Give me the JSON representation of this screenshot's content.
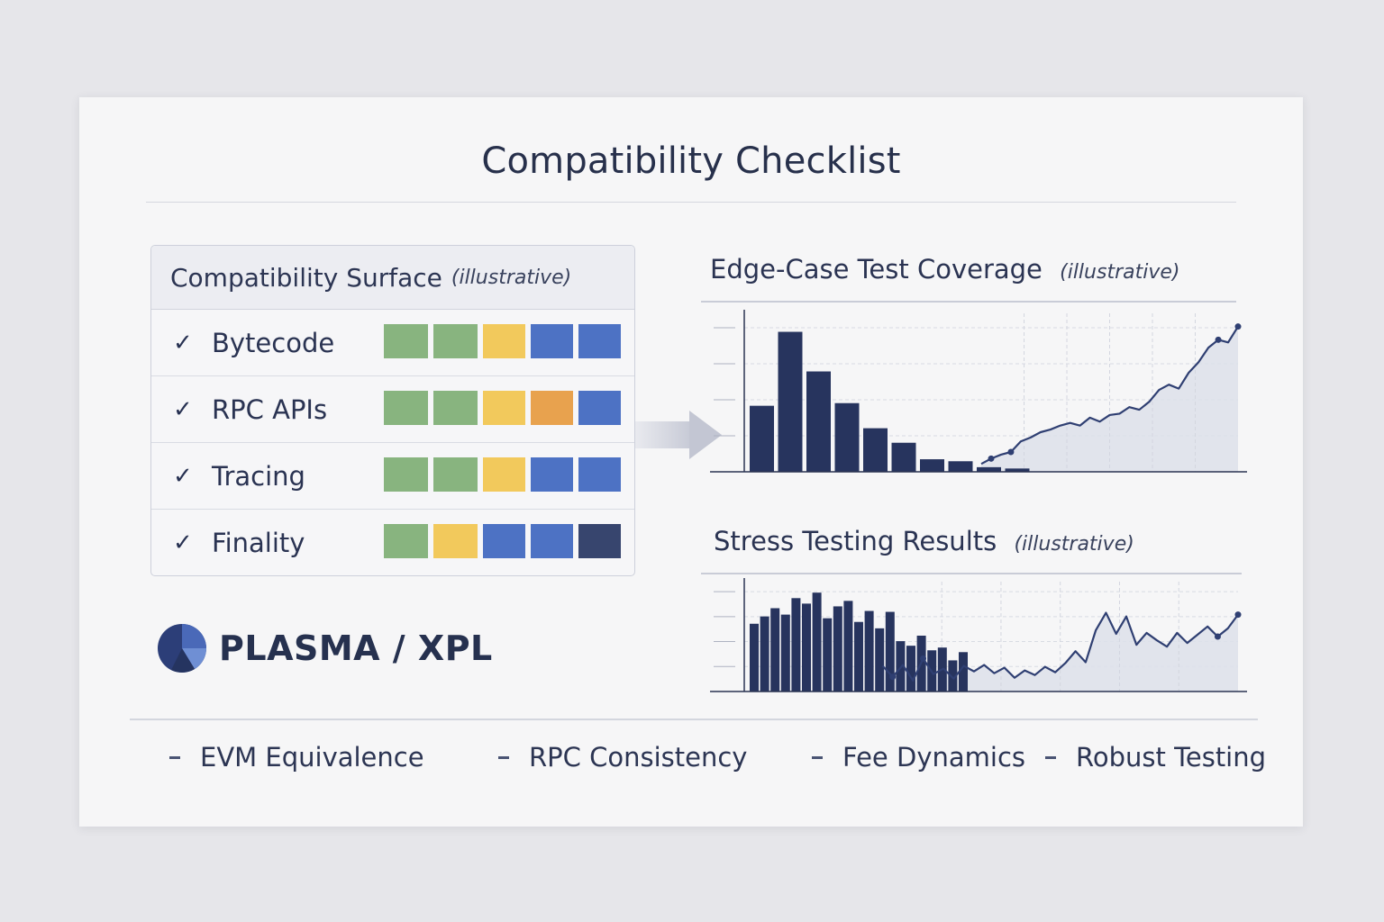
{
  "page": {
    "title": "Compatibility Checklist"
  },
  "surface": {
    "title": "Compatibility Surface",
    "title_note": "(illustrative)",
    "rows": [
      {
        "label": "Bytecode",
        "check": "✓",
        "blocks": [
          "#88b47f",
          "#88b47f",
          "#f2c95c",
          "#4d72c4",
          "#4d72c4"
        ]
      },
      {
        "label": "RPC APIs",
        "check": "✓",
        "blocks": [
          "#88b47f",
          "#88b47f",
          "#f2c95c",
          "#e8a24e",
          "#4d72c4"
        ]
      },
      {
        "label": "Tracing",
        "check": "✓",
        "blocks": [
          "#88b47f",
          "#88b47f",
          "#f2c95c",
          "#4d72c4",
          "#4d72c4"
        ]
      },
      {
        "label": "Finality",
        "check": "✓",
        "blocks": [
          "#88b47f",
          "#f2c95c",
          "#4d72c4",
          "#4d72c4",
          "#37456e"
        ]
      }
    ]
  },
  "logo": {
    "text": "PLASMA / XPL",
    "icon": "plasma-logo-icon"
  },
  "colors": {
    "navy": "#27345e",
    "line": "#2f3f72",
    "area": "#dde0ea"
  },
  "chart_data": [
    {
      "type": "bar",
      "title": "Edge-Case Test Coverage",
      "title_note": "(illustrative)",
      "bars": [
        5,
        10.6,
        7.6,
        5.2,
        3.3,
        2.2,
        0.95,
        0.8,
        0.35,
        0.25
      ],
      "line": [
        0.6,
        1.0,
        1.3,
        1.5,
        2.3,
        2.6,
        3.0,
        3.2,
        3.5,
        3.7,
        3.5,
        4.1,
        3.8,
        4.3,
        4.4,
        4.9,
        4.7,
        5.3,
        6.2,
        6.6,
        6.3,
        7.5,
        8.3,
        9.4,
        10.0,
        9.8,
        11.0
      ],
      "ylim": [
        0,
        12
      ],
      "grid": true
    },
    {
      "type": "bar",
      "title": "Stress Testing Results",
      "title_note": "(illustrative)",
      "bars": [
        7.4,
        8.2,
        9.1,
        8.4,
        10.2,
        9.6,
        10.8,
        8.0,
        9.3,
        9.9,
        7.6,
        8.8,
        6.9,
        8.7,
        5.5,
        5.0,
        6.1,
        4.5,
        4.8,
        3.4,
        4.3
      ],
      "line": [
        2.8,
        1.6,
        2.9,
        1.2,
        3.6,
        1.9,
        2.5,
        1.4,
        2.8,
        2.2,
        2.9,
        2.0,
        2.6,
        1.5,
        2.3,
        1.8,
        2.7,
        2.1,
        3.1,
        4.4,
        3.2,
        6.7,
        8.6,
        6.3,
        8.2,
        5.1,
        6.4,
        5.6,
        4.9,
        6.4,
        5.3,
        6.2,
        7.1,
        6.0,
        6.9,
        8.4
      ],
      "ylim": [
        0,
        12
      ],
      "grid": true
    }
  ],
  "footer": {
    "items": [
      "EVM Equivalence",
      "RPC Consistency",
      "Fee Dynamics",
      "Robust Testing"
    ]
  }
}
